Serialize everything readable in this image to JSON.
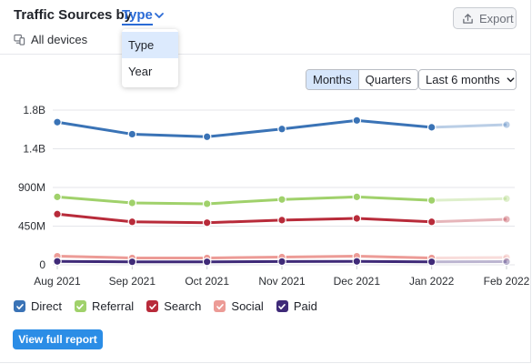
{
  "header": {
    "title_prefix": "Traffic Sources by",
    "type_label": "Type",
    "export_label": "Export",
    "devices_label": "All devices"
  },
  "dropdown": {
    "options": [
      "Type",
      "Year"
    ],
    "selected": "Type"
  },
  "controls": {
    "granularity": [
      "Months",
      "Quarters"
    ],
    "active_granularity": "Months",
    "period_label": "Last 6 months"
  },
  "colors": {
    "accent": "#2b6bd6",
    "button": "#2b8de6",
    "Direct": "#3a73b6",
    "Referral": "#a0d16b",
    "Search": "#b82b3a",
    "Social": "#ec9b96",
    "Paid": "#3f2a78"
  },
  "chart_data": {
    "type": "line",
    "x": [
      "Aug 2021",
      "Sep 2021",
      "Oct 2021",
      "Nov 2021",
      "Dec 2021",
      "Jan 2022",
      "Feb 2022"
    ],
    "y_ticks": [
      "0",
      "450M",
      "900M",
      "1.4B",
      "1.8B"
    ],
    "y_tick_values": [
      0,
      450000000,
      900000000,
      1350000000,
      1800000000
    ],
    "ylim": [
      0,
      1800000000
    ],
    "projected_last_point": true,
    "series": [
      {
        "name": "Direct",
        "values": [
          1660000000,
          1520000000,
          1490000000,
          1580000000,
          1680000000,
          1600000000,
          1630000000
        ]
      },
      {
        "name": "Referral",
        "values": [
          790000000,
          720000000,
          710000000,
          760000000,
          790000000,
          750000000,
          770000000
        ]
      },
      {
        "name": "Search",
        "values": [
          590000000,
          500000000,
          490000000,
          520000000,
          540000000,
          500000000,
          530000000
        ]
      },
      {
        "name": "Social",
        "values": [
          100000000,
          80000000,
          80000000,
          90000000,
          100000000,
          80000000,
          85000000
        ]
      },
      {
        "name": "Paid",
        "values": [
          40000000,
          35000000,
          35000000,
          38000000,
          40000000,
          35000000,
          37000000
        ]
      }
    ]
  },
  "legend": [
    "Direct",
    "Referral",
    "Search",
    "Social",
    "Paid"
  ],
  "footer": {
    "report_label": "View full report"
  }
}
